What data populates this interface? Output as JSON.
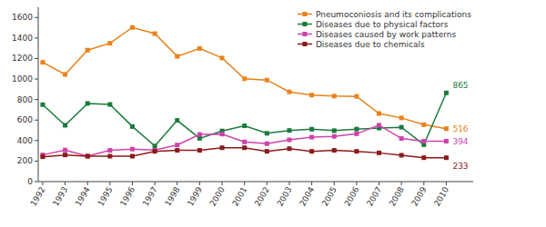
{
  "chart_data": {
    "type": "line",
    "x": [
      1992,
      1993,
      1994,
      1995,
      1996,
      1997,
      1998,
      1999,
      2000,
      2001,
      2002,
      2003,
      2004,
      2005,
      2006,
      2007,
      2008,
      2009,
      2010
    ],
    "series": [
      {
        "name": "Pneumoconiosis and its complications",
        "color": "#E8821A",
        "values": [
          1163,
          1045,
          1282,
          1349,
          1503,
          1443,
          1221,
          1298,
          1205,
          1003,
          990,
          875,
          844,
          834,
          831,
          664,
          621,
          555,
          516
        ]
      },
      {
        "name": "Diseases due to physical factors",
        "color": "#1A7A3C",
        "values": [
          750,
          549,
          762,
          752,
          537,
          347,
          597,
          422,
          494,
          544,
          471,
          499,
          511,
          497,
          512,
          522,
          530,
          360,
          865
        ]
      },
      {
        "name": "Diseases caused by work patterns",
        "color": "#CC44AA",
        "values": [
          260,
          308,
          248,
          305,
          317,
          307,
          357,
          460,
          463,
          387,
          370,
          407,
          433,
          441,
          466,
          550,
          420,
          394,
          394
        ]
      },
      {
        "name": "Diseases due to chemicals",
        "color": "#8B1A1A",
        "values": [
          242,
          260,
          248,
          248,
          248,
          295,
          305,
          305,
          330,
          330,
          295,
          321,
          295,
          305,
          295,
          280,
          257,
          233,
          233
        ]
      }
    ],
    "annotations": [
      {
        "text": "865",
        "x": 2010,
        "y": 865
      },
      {
        "text": "516",
        "x": 2010,
        "y": 516
      },
      {
        "text": "394",
        "x": 2010,
        "y": 394
      },
      {
        "text": "233",
        "x": 2010,
        "y": 233
      }
    ],
    "xlim": [
      1991.8,
      2011.2
    ],
    "xticks": [
      1992,
      1993,
      1994,
      1995,
      1996,
      1997,
      1998,
      1999,
      2000,
      2001,
      2002,
      2003,
      2004,
      2005,
      2006,
      2007,
      2008,
      2009,
      2010
    ],
    "ylim": [
      0,
      1700
    ],
    "yticks": [
      0,
      200,
      400,
      600,
      800,
      1000,
      1200,
      1400,
      1600
    ],
    "marker": "square",
    "legend": "upper right",
    "grid": false
  }
}
